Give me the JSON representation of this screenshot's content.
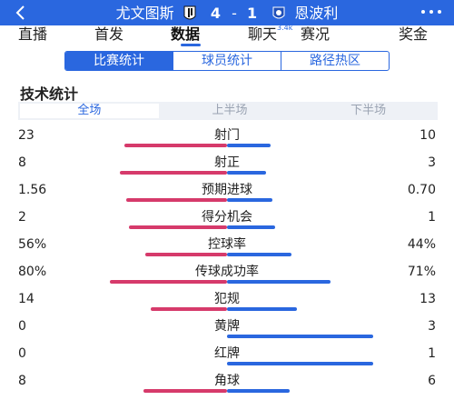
{
  "header": {
    "home_team": "尤文图斯",
    "away_team": "恩波利",
    "home_score": "4",
    "separator": "-",
    "away_score": "1",
    "background_color": "#2a67df",
    "back_icon": "chevron-left-icon",
    "more_icon": "more-dots-icon"
  },
  "tabs": [
    {
      "label": "直播",
      "active": false
    },
    {
      "label": "首发",
      "active": false
    },
    {
      "label": "数据",
      "active": true
    },
    {
      "label": "聊天",
      "badge": "3.4k",
      "active": false
    },
    {
      "label": "赛况",
      "active": false
    },
    {
      "label": "奖金",
      "active": false
    }
  ],
  "subtabs": [
    {
      "label": "比赛统计",
      "active": true
    },
    {
      "label": "球员统计",
      "active": false
    },
    {
      "label": "路径热区",
      "active": false
    }
  ],
  "section_title": "技术统计",
  "period_tabs": [
    {
      "label": "全场",
      "active": true
    },
    {
      "label": "上半场",
      "active": false
    },
    {
      "label": "下半场",
      "active": false
    }
  ],
  "colors": {
    "home_bar": "#d63a6b",
    "away_bar": "#2a67df",
    "accent": "#2a67df"
  },
  "stats": [
    {
      "label": "射门",
      "home": "23",
      "away": "10",
      "home_share": 0.7,
      "away_share": 0.3
    },
    {
      "label": "射正",
      "home": "8",
      "away": "3",
      "home_share": 0.73,
      "away_share": 0.27
    },
    {
      "label": "预期进球",
      "home": "1.56",
      "away": "0.70",
      "home_share": 0.69,
      "away_share": 0.31
    },
    {
      "label": "得分机会",
      "home": "2",
      "away": "1",
      "home_share": 0.67,
      "away_share": 0.33
    },
    {
      "label": "控球率",
      "home": "56%",
      "away": "44%",
      "home_share": 0.56,
      "away_share": 0.44
    },
    {
      "label": "传球成功率",
      "home": "80%",
      "away": "71%",
      "home_share": 0.8,
      "away_share": 0.71
    },
    {
      "label": "犯规",
      "home": "14",
      "away": "13",
      "home_share": 0.52,
      "away_share": 0.48
    },
    {
      "label": "黄牌",
      "home": "0",
      "away": "3",
      "home_share": 0.0,
      "away_share": 1.0
    },
    {
      "label": "红牌",
      "home": "0",
      "away": "1",
      "home_share": 0.0,
      "away_share": 1.0
    },
    {
      "label": "角球",
      "home": "8",
      "away": "6",
      "home_share": 0.57,
      "away_share": 0.43
    }
  ]
}
